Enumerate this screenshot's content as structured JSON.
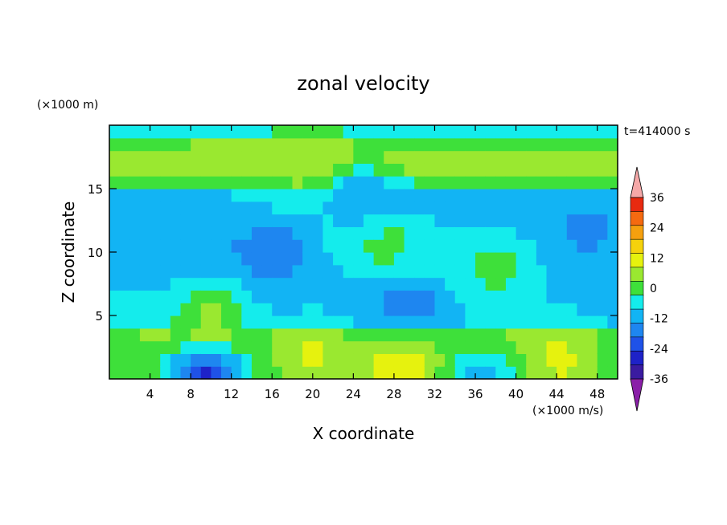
{
  "chart_data": {
    "type": "heatmap",
    "title": "zonal velocity",
    "xlabel": "X coordinate",
    "ylabel": "Z coordinate",
    "x_unit_label": "(×1000 m/s)",
    "y_unit_label": "(×1000 m)",
    "time_label": "t=414000 s",
    "xlim": [
      0,
      50
    ],
    "ylim": [
      0,
      20
    ],
    "x_ticks": [
      4,
      8,
      12,
      16,
      20,
      24,
      28,
      32,
      36,
      40,
      44,
      48
    ],
    "y_ticks": [
      5,
      10,
      15
    ],
    "grid": false,
    "legend": "colorbar-right",
    "colorbar": {
      "levels": [
        -42,
        -36,
        -30,
        -24,
        -18,
        -12,
        -6,
        0,
        6,
        12,
        18,
        24,
        30,
        36,
        42
      ],
      "tick_labels": [
        36,
        24,
        12,
        0,
        -12,
        -24,
        -36
      ],
      "colors": [
        "#8a1fa8",
        "#3a1ba0",
        "#1e22c8",
        "#1f52e8",
        "#1e86f0",
        "#12b4f4",
        "#14ecec",
        "#3ee03a",
        "#9ae830",
        "#e6f20e",
        "#f5d20c",
        "#f5a00e",
        "#f56a10",
        "#e82a10",
        "#f5a8a8"
      ]
    },
    "field": {
      "nx": 50,
      "nz": 20,
      "description_of_values": "zonal velocity values sampled on the x/z grid, estimated from the contour colors",
      "features": [
        {
          "x": 9.5,
          "z": 0.3,
          "value": -30
        },
        {
          "x": 16,
          "z": 10,
          "value": -18
        },
        {
          "x": 29.5,
          "z": 5.5,
          "value": -18
        },
        {
          "x": 20,
          "z": 2,
          "value": 15
        },
        {
          "x": 29,
          "z": 1,
          "value": 20
        },
        {
          "x": 10,
          "z": 5,
          "value": 10
        },
        {
          "x": 20,
          "z": 17,
          "value": 12
        },
        {
          "x": 44,
          "z": 1.5,
          "value": 15
        },
        {
          "x": 27,
          "z": 11,
          "value": 4
        },
        {
          "x": 38,
          "z": 9,
          "value": 4
        },
        {
          "x": 3,
          "z": 11,
          "value": -10
        },
        {
          "x": 47,
          "z": 12,
          "value": -14
        },
        {
          "x": 25,
          "z": 14.5,
          "value": -12
        },
        {
          "x": 37,
          "z": 0.3,
          "value": -10
        }
      ]
    }
  }
}
